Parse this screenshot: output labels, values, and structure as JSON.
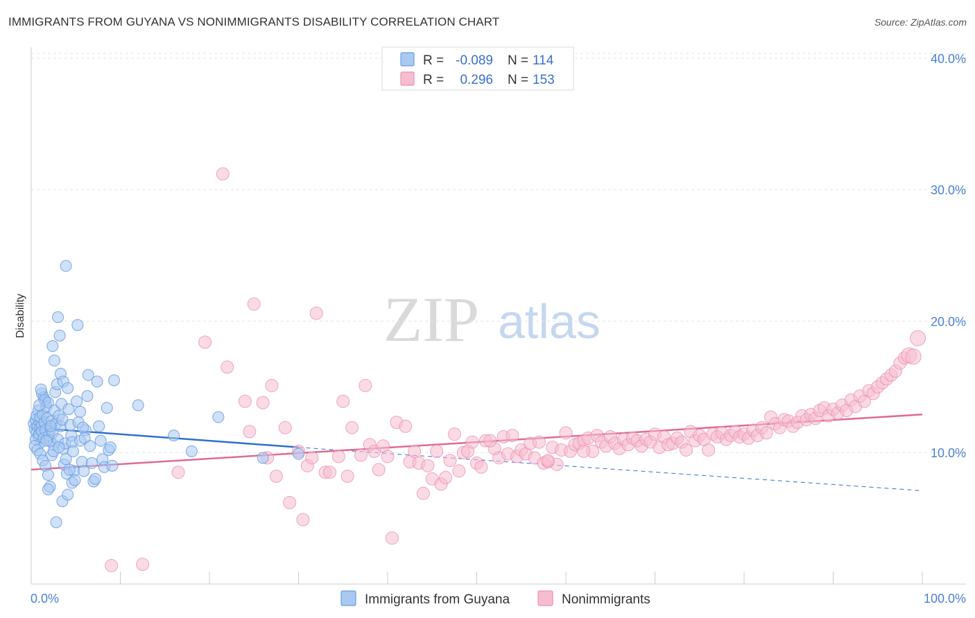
{
  "title": "IMMIGRANTS FROM GUYANA VS NONIMMIGRANTS DISABILITY CORRELATION CHART",
  "source": "Source: ZipAtlas.com",
  "watermark": {
    "part1": "ZIP",
    "part2": "atlas"
  },
  "colors": {
    "blue": "#6a9fe0",
    "blue_fill": "#a9c8f2",
    "blue_line": "#2f6fcf",
    "pink": "#ec8fb0",
    "pink_fill": "#f6bdd0",
    "pink_line": "#e06a94",
    "axis_text": "#4a7fd4"
  },
  "legend_top": {
    "rows": [
      {
        "r_label": "R =",
        "r_value": "-0.089",
        "n_label": "N =",
        "n_value": "114"
      },
      {
        "r_label": "R =",
        "r_value": "0.296",
        "n_label": "N =",
        "n_value": "153"
      }
    ]
  },
  "legend_bottom": {
    "items": [
      "Immigrants from Guyana",
      "Nonimmigrants"
    ]
  },
  "chart_data": {
    "type": "scatter",
    "title": "IMMIGRANTS FROM GUYANA VS NONIMMIGRANTS DISABILITY CORRELATION CHART",
    "xlabel": "",
    "ylabel": "Disability",
    "xlim": [
      0,
      100
    ],
    "ylim": [
      0,
      41
    ],
    "x_tick_labels": [
      "0.0%",
      "100.0%"
    ],
    "y_tick_labels": [
      "10.0%",
      "20.0%",
      "30.0%",
      "40.0%"
    ],
    "y_ticks": [
      10,
      20,
      30,
      40
    ],
    "grid": true,
    "legend_position": "top-center",
    "series": [
      {
        "name": "Immigrants from Guyana",
        "r": -0.089,
        "n": 114,
        "trend": {
          "x": [
            0,
            30
          ],
          "y": [
            11.9,
            10.4
          ],
          "dashed_to": [
            100,
            7.1
          ]
        },
        "points": [
          [
            0.3,
            12.2
          ],
          [
            0.4,
            11.8
          ],
          [
            0.5,
            12.5
          ],
          [
            0.6,
            11.5
          ],
          [
            0.7,
            12.0
          ],
          [
            0.8,
            11.2
          ],
          [
            0.9,
            12.4
          ],
          [
            1.0,
            11.9
          ],
          [
            1.1,
            10.8
          ],
          [
            1.2,
            12.1
          ],
          [
            0.5,
            11.0
          ],
          [
            0.6,
            12.8
          ],
          [
            0.8,
            13.2
          ],
          [
            0.9,
            11.4
          ],
          [
            1.0,
            12.7
          ],
          [
            1.2,
            11.6
          ],
          [
            1.3,
            12.9
          ],
          [
            1.4,
            11.1
          ],
          [
            1.5,
            12.3
          ],
          [
            1.6,
            11.7
          ],
          [
            0.4,
            10.5
          ],
          [
            0.7,
            10.2
          ],
          [
            1.0,
            9.9
          ],
          [
            1.2,
            14.5
          ],
          [
            1.4,
            14.2
          ],
          [
            1.6,
            13.9
          ],
          [
            1.8,
            12.6
          ],
          [
            2.0,
            11.3
          ],
          [
            2.1,
            10.9
          ],
          [
            2.2,
            11.8
          ],
          [
            1.1,
            14.8
          ],
          [
            1.5,
            14.0
          ],
          [
            1.7,
            13.5
          ],
          [
            1.9,
            13.8
          ],
          [
            2.3,
            12.4
          ],
          [
            2.4,
            11.5
          ],
          [
            2.5,
            10.6
          ],
          [
            2.6,
            13.2
          ],
          [
            2.8,
            12.2
          ],
          [
            3.0,
            11.0
          ],
          [
            1.3,
            9.4
          ],
          [
            1.6,
            9.0
          ],
          [
            1.9,
            8.3
          ],
          [
            2.1,
            7.4
          ],
          [
            2.3,
            9.8
          ],
          [
            2.5,
            10.1
          ],
          [
            2.7,
            14.6
          ],
          [
            2.9,
            15.2
          ],
          [
            3.1,
            12.8
          ],
          [
            3.3,
            12.0
          ],
          [
            2.4,
            18.1
          ],
          [
            2.6,
            17.0
          ],
          [
            3.0,
            20.3
          ],
          [
            3.2,
            18.9
          ],
          [
            3.4,
            13.7
          ],
          [
            3.5,
            12.5
          ],
          [
            3.6,
            10.3
          ],
          [
            3.7,
            9.1
          ],
          [
            3.8,
            10.7
          ],
          [
            3.9,
            9.5
          ],
          [
            3.3,
            16.0
          ],
          [
            3.6,
            15.4
          ],
          [
            3.9,
            24.2
          ],
          [
            4.1,
            14.9
          ],
          [
            4.2,
            13.3
          ],
          [
            4.4,
            12.1
          ],
          [
            4.5,
            11.3
          ],
          [
            4.6,
            10.8
          ],
          [
            4.7,
            10.1
          ],
          [
            4.8,
            8.6
          ],
          [
            4.0,
            8.4
          ],
          [
            4.3,
            8.7
          ],
          [
            4.6,
            7.7
          ],
          [
            4.9,
            7.9
          ],
          [
            5.1,
            13.9
          ],
          [
            5.3,
            12.3
          ],
          [
            5.5,
            10.9
          ],
          [
            5.7,
            9.3
          ],
          [
            5.9,
            8.6
          ],
          [
            6.1,
            11.7
          ],
          [
            5.2,
            19.7
          ],
          [
            5.5,
            13.1
          ],
          [
            5.8,
            11.9
          ],
          [
            6.0,
            11.1
          ],
          [
            6.3,
            14.3
          ],
          [
            6.4,
            15.9
          ],
          [
            6.6,
            10.5
          ],
          [
            6.8,
            9.2
          ],
          [
            7.0,
            7.8
          ],
          [
            7.2,
            8.0
          ],
          [
            7.4,
            15.4
          ],
          [
            7.6,
            12.0
          ],
          [
            7.8,
            10.9
          ],
          [
            8.0,
            9.5
          ],
          [
            8.2,
            8.9
          ],
          [
            8.5,
            13.4
          ],
          [
            8.7,
            10.2
          ],
          [
            8.9,
            10.4
          ],
          [
            9.1,
            9.0
          ],
          [
            9.3,
            15.5
          ],
          [
            3.5,
            6.3
          ],
          [
            2.8,
            4.7
          ],
          [
            1.9,
            7.2
          ],
          [
            3.1,
            10.4
          ],
          [
            4.1,
            6.8
          ],
          [
            12.0,
            13.6
          ],
          [
            16.0,
            11.3
          ],
          [
            18.0,
            10.1
          ],
          [
            21.0,
            12.7
          ],
          [
            26.0,
            9.6
          ],
          [
            30.0,
            9.9
          ],
          [
            0.9,
            13.6
          ],
          [
            2.2,
            12.0
          ],
          [
            1.7,
            10.9
          ]
        ]
      },
      {
        "name": "Nonimmigrants",
        "r": 0.296,
        "n": 153,
        "trend": {
          "x": [
            0,
            100
          ],
          "y": [
            8.7,
            12.9
          ]
        },
        "points": [
          [
            9.0,
            1.4
          ],
          [
            12.5,
            1.5
          ],
          [
            16.5,
            8.5
          ],
          [
            19.5,
            18.4
          ],
          [
            21.5,
            31.2
          ],
          [
            22.0,
            16.5
          ],
          [
            24.0,
            13.9
          ],
          [
            24.5,
            11.6
          ],
          [
            25.0,
            21.3
          ],
          [
            26.0,
            13.8
          ],
          [
            26.5,
            9.6
          ],
          [
            27.0,
            15.1
          ],
          [
            27.5,
            8.2
          ],
          [
            28.5,
            11.9
          ],
          [
            29.0,
            6.2
          ],
          [
            30.0,
            10.1
          ],
          [
            30.5,
            4.9
          ],
          [
            31.0,
            9.0
          ],
          [
            31.5,
            9.6
          ],
          [
            32.0,
            20.6
          ],
          [
            33.0,
            8.5
          ],
          [
            33.5,
            8.5
          ],
          [
            34.5,
            9.7
          ],
          [
            35.0,
            13.9
          ],
          [
            35.5,
            8.2
          ],
          [
            36.0,
            11.9
          ],
          [
            37.0,
            9.8
          ],
          [
            37.5,
            15.1
          ],
          [
            38.0,
            10.6
          ],
          [
            38.5,
            10.1
          ],
          [
            39.0,
            8.7
          ],
          [
            39.5,
            10.5
          ],
          [
            40.0,
            9.7
          ],
          [
            40.5,
            3.5
          ],
          [
            41.0,
            12.3
          ],
          [
            42.0,
            12.0
          ],
          [
            42.5,
            9.3
          ],
          [
            43.0,
            10.1
          ],
          [
            43.5,
            9.2
          ],
          [
            44.0,
            6.9
          ],
          [
            44.5,
            9.0
          ],
          [
            45.0,
            8.0
          ],
          [
            45.5,
            10.1
          ],
          [
            46.0,
            7.6
          ],
          [
            46.5,
            8.1
          ],
          [
            47.0,
            9.4
          ],
          [
            47.5,
            11.4
          ],
          [
            48.0,
            8.6
          ],
          [
            48.5,
            10.0
          ],
          [
            49.0,
            10.1
          ],
          [
            49.5,
            10.8
          ],
          [
            50.0,
            9.2
          ],
          [
            50.5,
            8.9
          ],
          [
            51.0,
            10.9
          ],
          [
            52.0,
            10.3
          ],
          [
            52.5,
            9.6
          ],
          [
            53.0,
            11.2
          ],
          [
            53.5,
            9.9
          ],
          [
            54.0,
            11.3
          ],
          [
            54.5,
            9.7
          ],
          [
            55.0,
            10.2
          ],
          [
            55.5,
            9.9
          ],
          [
            56.0,
            10.7
          ],
          [
            56.5,
            9.6
          ],
          [
            57.0,
            10.8
          ],
          [
            57.5,
            9.2
          ],
          [
            58.0,
            9.3
          ],
          [
            58.5,
            10.4
          ],
          [
            59.0,
            9.1
          ],
          [
            59.5,
            10.2
          ],
          [
            60.0,
            11.5
          ],
          [
            60.5,
            10.1
          ],
          [
            61.0,
            10.6
          ],
          [
            61.5,
            10.7
          ],
          [
            62.0,
            10.9
          ],
          [
            62.5,
            11.1
          ],
          [
            63.0,
            10.1
          ],
          [
            63.5,
            11.3
          ],
          [
            64.0,
            10.8
          ],
          [
            64.5,
            10.5
          ],
          [
            65.0,
            11.2
          ],
          [
            65.5,
            10.7
          ],
          [
            66.0,
            10.3
          ],
          [
            66.5,
            11.0
          ],
          [
            67.0,
            10.6
          ],
          [
            67.5,
            11.1
          ],
          [
            68.0,
            10.9
          ],
          [
            68.5,
            10.5
          ],
          [
            69.0,
            11.0
          ],
          [
            69.5,
            10.8
          ],
          [
            70.0,
            11.4
          ],
          [
            70.5,
            10.4
          ],
          [
            71.0,
            11.2
          ],
          [
            71.5,
            10.6
          ],
          [
            72.0,
            10.7
          ],
          [
            72.5,
            11.1
          ],
          [
            73.0,
            10.8
          ],
          [
            73.5,
            10.2
          ],
          [
            74.0,
            11.6
          ],
          [
            74.5,
            10.9
          ],
          [
            75.0,
            11.3
          ],
          [
            75.5,
            11.0
          ],
          [
            76.0,
            10.2
          ],
          [
            76.5,
            11.4
          ],
          [
            77.0,
            11.2
          ],
          [
            77.5,
            11.5
          ],
          [
            78.0,
            11.0
          ],
          [
            78.5,
            11.3
          ],
          [
            79.0,
            11.6
          ],
          [
            79.5,
            11.2
          ],
          [
            80.0,
            11.4
          ],
          [
            80.5,
            11.1
          ],
          [
            81.0,
            11.7
          ],
          [
            81.5,
            11.3
          ],
          [
            82.0,
            11.9
          ],
          [
            82.5,
            11.5
          ],
          [
            83.0,
            12.7
          ],
          [
            83.5,
            12.2
          ],
          [
            84.0,
            11.9
          ],
          [
            84.5,
            12.5
          ],
          [
            85.0,
            12.4
          ],
          [
            85.5,
            12.0
          ],
          [
            86.0,
            12.3
          ],
          [
            86.5,
            12.8
          ],
          [
            87.0,
            12.5
          ],
          [
            87.5,
            12.9
          ],
          [
            88.0,
            12.6
          ],
          [
            88.5,
            13.2
          ],
          [
            89.0,
            13.4
          ],
          [
            89.5,
            12.8
          ],
          [
            90.0,
            13.3
          ],
          [
            90.5,
            13.0
          ],
          [
            91.0,
            13.6
          ],
          [
            91.5,
            13.2
          ],
          [
            92.0,
            14.0
          ],
          [
            92.5,
            13.5
          ],
          [
            93.0,
            14.3
          ],
          [
            93.5,
            13.9
          ],
          [
            94.0,
            14.7
          ],
          [
            94.5,
            14.5
          ],
          [
            95.0,
            15.0
          ],
          [
            95.5,
            15.3
          ],
          [
            96.0,
            15.6
          ],
          [
            96.5,
            15.9
          ],
          [
            97.0,
            16.2
          ],
          [
            97.5,
            16.8
          ],
          [
            98.0,
            17.2
          ],
          [
            98.5,
            17.4
          ],
          [
            99.0,
            17.3
          ],
          [
            99.5,
            18.7
          ],
          [
            62.0,
            10.1
          ],
          [
            58.0,
            9.4
          ],
          [
            51.5,
            10.9
          ]
        ]
      }
    ]
  }
}
